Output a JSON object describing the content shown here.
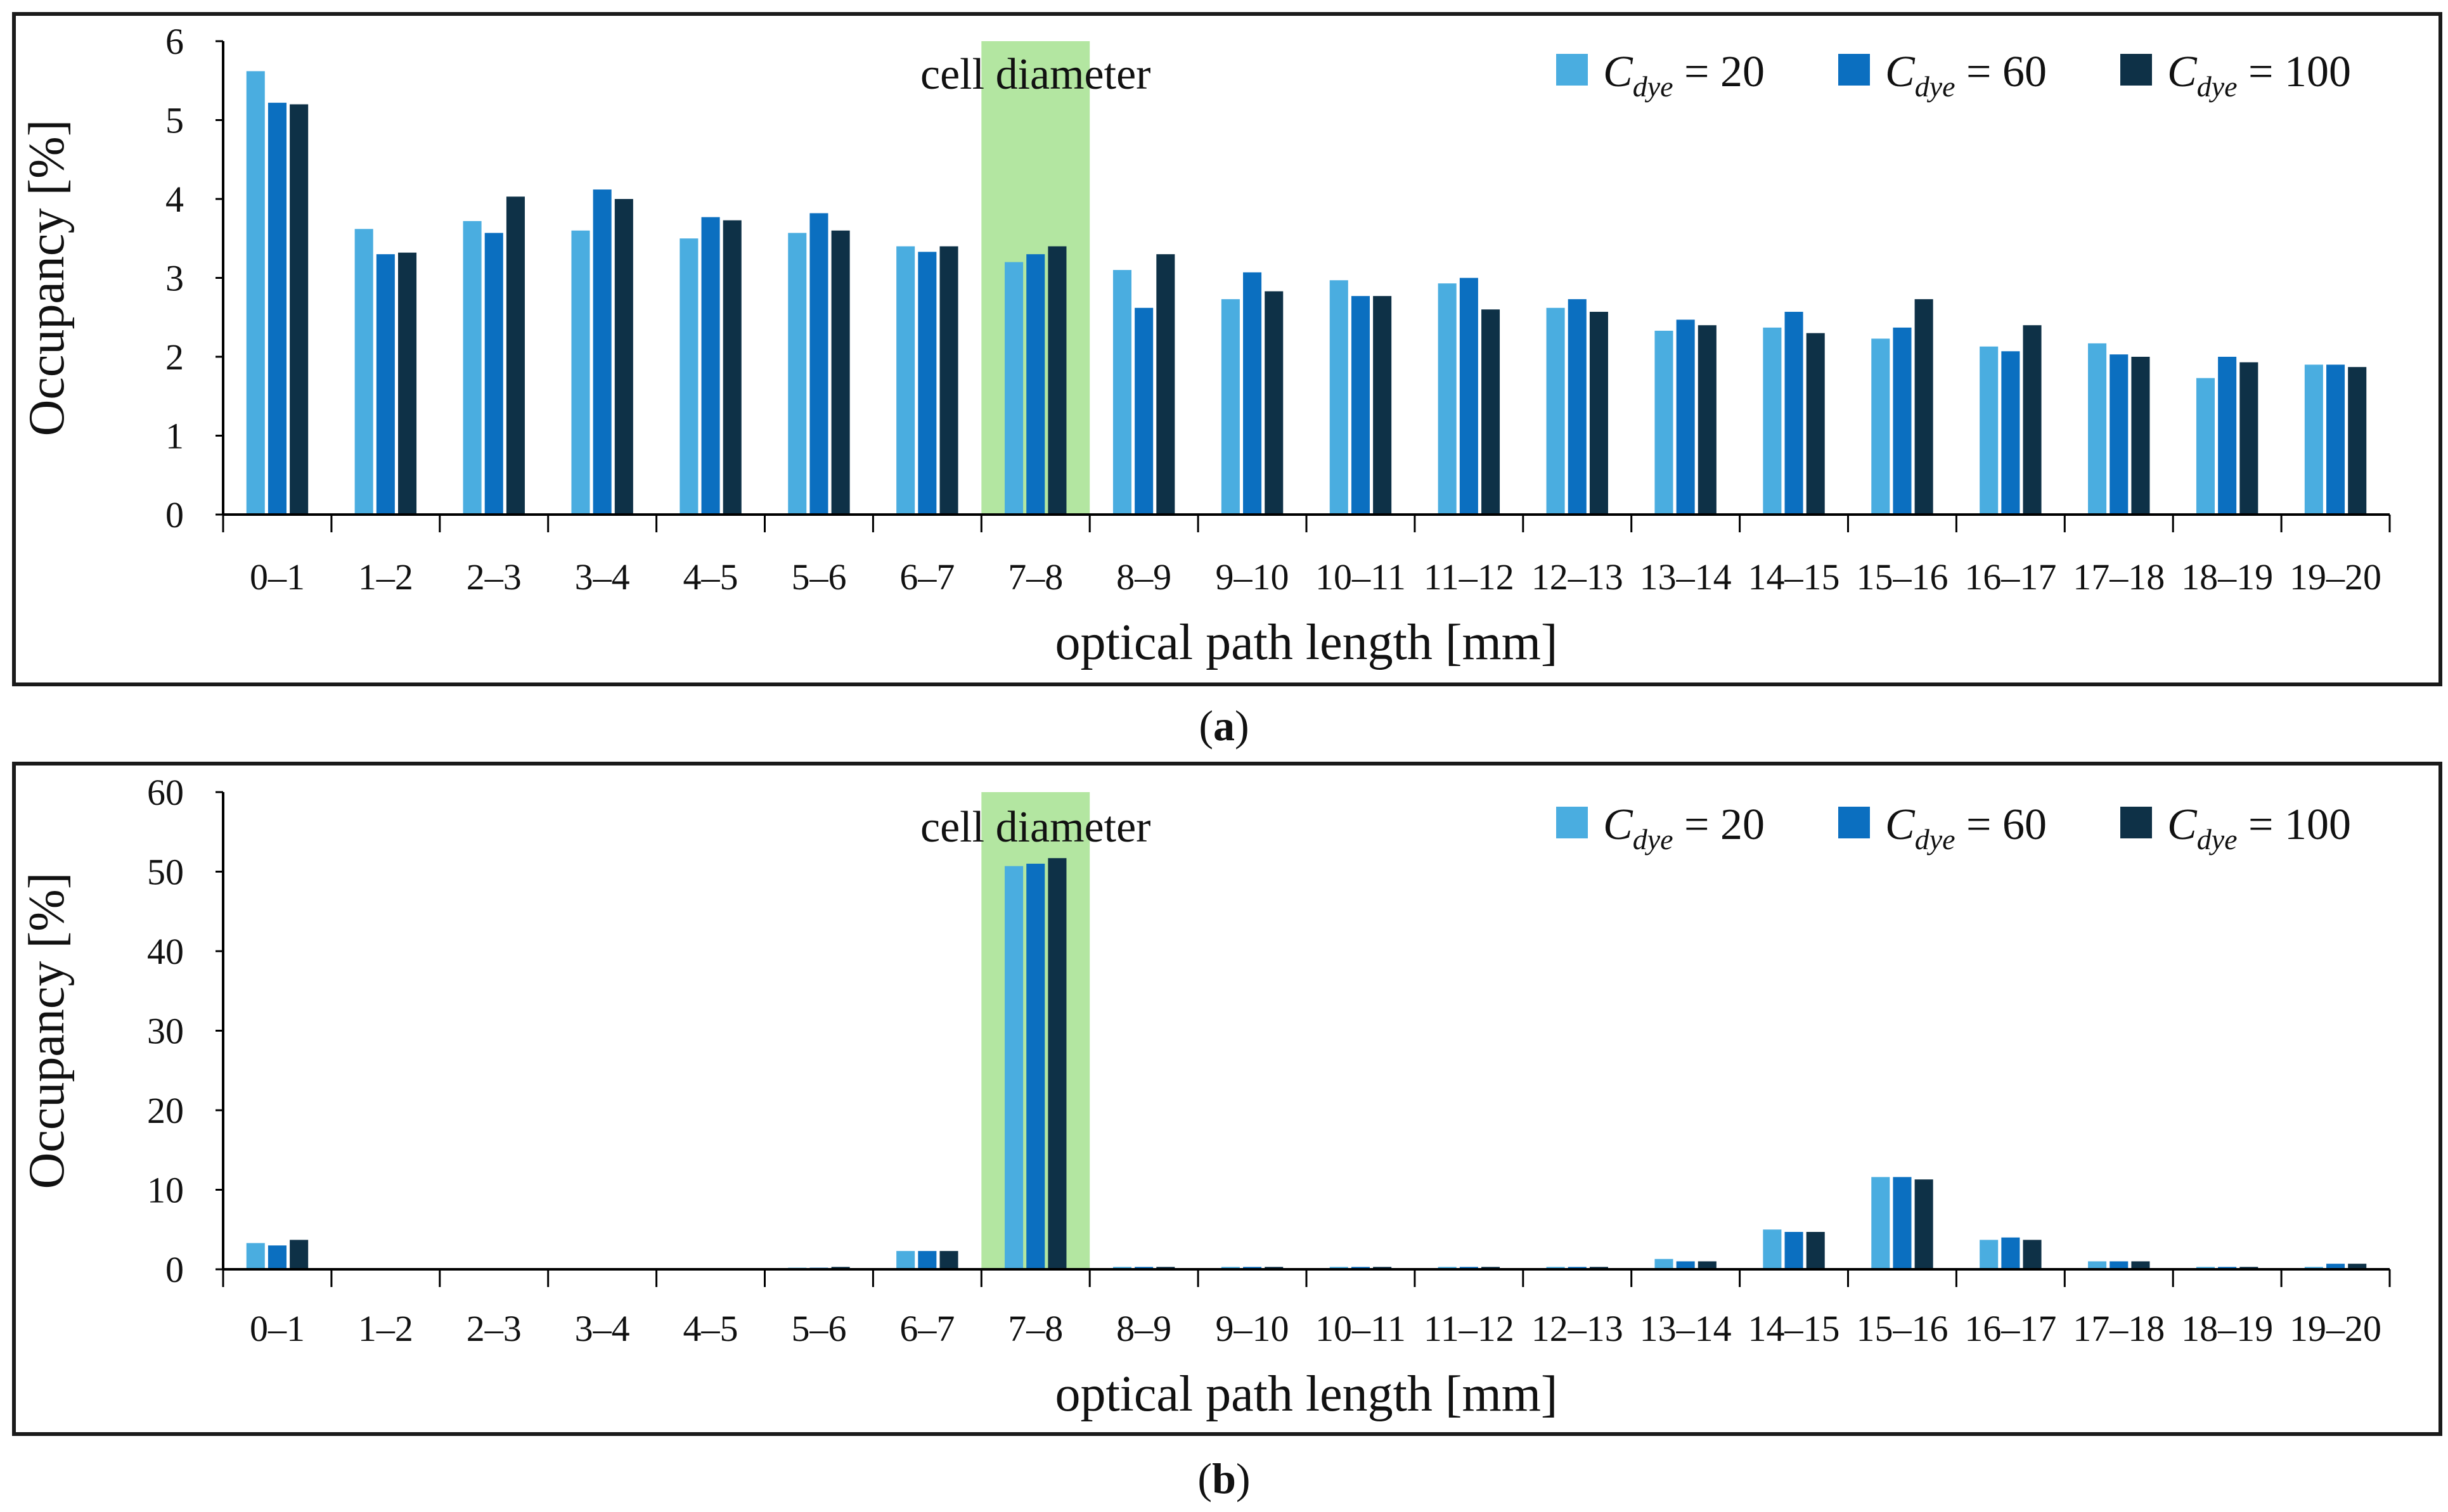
{
  "chart_data": [
    {
      "type": "bar",
      "panel": "a",
      "caption_letter": "a",
      "categories": [
        "0–1",
        "1–2",
        "2–3",
        "3–4",
        "4–5",
        "5–6",
        "6–7",
        "7–8",
        "8–9",
        "9–10",
        "10–11",
        "11–12",
        "12–13",
        "13–14",
        "14–15",
        "15–16",
        "16–17",
        "17–18",
        "18–19",
        "19–20"
      ],
      "series": [
        {
          "name": "C_dye = 20",
          "legend_prefix": "C",
          "legend_sub": "dye",
          "legend_suffix": " = 20",
          "color": "#4aade0",
          "values": [
            5.62,
            3.62,
            3.72,
            3.6,
            3.5,
            3.57,
            3.4,
            3.2,
            3.1,
            2.73,
            2.97,
            2.93,
            2.62,
            2.33,
            2.37,
            2.23,
            2.13,
            2.17,
            1.73,
            1.9
          ]
        },
        {
          "name": "C_dye = 60",
          "legend_prefix": "C",
          "legend_sub": "dye",
          "legend_suffix": " = 60",
          "color": "#0b6fc0",
          "values": [
            5.22,
            3.3,
            3.57,
            4.12,
            3.77,
            3.82,
            3.33,
            3.3,
            2.62,
            3.07,
            2.77,
            3.0,
            2.73,
            2.47,
            2.57,
            2.37,
            2.07,
            2.03,
            2.0,
            1.9
          ]
        },
        {
          "name": "C_dye = 100",
          "legend_prefix": "C",
          "legend_sub": "dye",
          "legend_suffix": " = 100",
          "color": "#0e3147",
          "values": [
            5.2,
            3.32,
            4.03,
            4.0,
            3.73,
            3.6,
            3.4,
            3.4,
            3.3,
            2.83,
            2.77,
            2.6,
            2.57,
            2.4,
            2.3,
            2.73,
            2.4,
            2.0,
            1.93,
            1.87
          ]
        }
      ],
      "title": "",
      "xlabel": "optical path length [mm]",
      "ylabel": "Occupancy [%]",
      "ylim": [
        0,
        6
      ],
      "yticks": [
        0,
        1,
        2,
        3,
        4,
        5,
        6
      ],
      "legend_position": "top-right",
      "highlight": {
        "category": "7–8",
        "label": "cell diameter",
        "color": "#b3e6a1"
      }
    },
    {
      "type": "bar",
      "panel": "b",
      "caption_letter": "b",
      "categories": [
        "0–1",
        "1–2",
        "2–3",
        "3–4",
        "4–5",
        "5–6",
        "6–7",
        "7–8",
        "8–9",
        "9–10",
        "10–11",
        "11–12",
        "12–13",
        "13–14",
        "14–15",
        "15–16",
        "16–17",
        "17–18",
        "18–19",
        "19–20"
      ],
      "series": [
        {
          "name": "C_dye = 20",
          "legend_prefix": "C",
          "legend_sub": "dye",
          "legend_suffix": " = 20",
          "color": "#4aade0",
          "values": [
            3.3,
            0,
            0,
            0,
            0,
            0.2,
            2.3,
            50.7,
            0.3,
            0.3,
            0.3,
            0.3,
            0.3,
            1.3,
            5.0,
            11.6,
            3.7,
            1.0,
            0.3,
            0.3
          ]
        },
        {
          "name": "C_dye = 60",
          "legend_prefix": "C",
          "legend_sub": "dye",
          "legend_suffix": " = 60",
          "color": "#0b6fc0",
          "values": [
            3.0,
            0,
            0,
            0,
            0,
            0.2,
            2.3,
            51.0,
            0.3,
            0.3,
            0.3,
            0.3,
            0.3,
            1.0,
            4.7,
            11.6,
            4.0,
            1.0,
            0.3,
            0.7
          ]
        },
        {
          "name": "C_dye = 100",
          "legend_prefix": "C",
          "legend_sub": "dye",
          "legend_suffix": " = 100",
          "color": "#0e3147",
          "values": [
            3.7,
            0,
            0,
            0,
            0,
            0.3,
            2.3,
            51.7,
            0.3,
            0.3,
            0.3,
            0.3,
            0.3,
            1.0,
            4.7,
            11.3,
            3.7,
            1.0,
            0.3,
            0.7
          ]
        }
      ],
      "title": "",
      "xlabel": "optical path length [mm]",
      "ylabel": "Occupancy [%]",
      "ylim": [
        0,
        60
      ],
      "yticks": [
        0,
        10,
        20,
        30,
        40,
        50,
        60
      ],
      "legend_position": "top-right",
      "highlight": {
        "category": "7–8",
        "label": "cell diameter",
        "color": "#b3e6a1"
      }
    }
  ]
}
